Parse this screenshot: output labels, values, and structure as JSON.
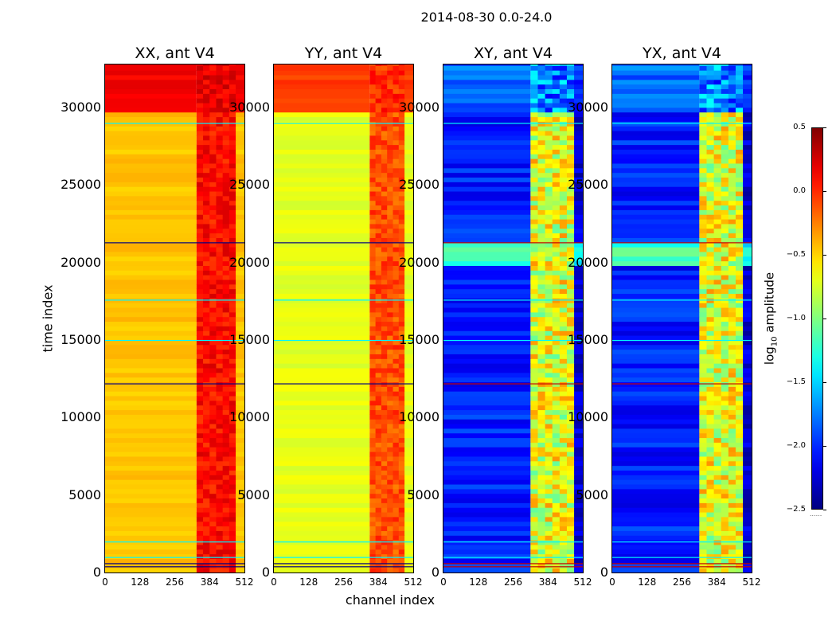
{
  "chart_data": {
    "type": "heatmap",
    "title": "2014-08-30 0.0-24.0",
    "xlabel": "channel index",
    "ylabel": "time index",
    "xlim": [
      0,
      512
    ],
    "ylim": [
      0,
      32768
    ],
    "x_ticks": [
      "0",
      "128",
      "256",
      "384",
      "512"
    ],
    "y_ticks": [
      "0",
      "5000",
      "10000",
      "15000",
      "20000",
      "25000",
      "30000"
    ],
    "y_tick_values": [
      0,
      5000,
      10000,
      15000,
      20000,
      25000,
      30000
    ],
    "colorbar": {
      "label": "log",
      "label_sub": "10",
      "label_rest": " amplitude",
      "ticks": [
        "0.5",
        "0.0",
        "−0.5",
        "−1.0",
        "−1.5",
        "−2.0",
        "−2.5"
      ],
      "tick_values": [
        0.5,
        0.0,
        -0.5,
        -1.0,
        -1.5,
        -2.0,
        -2.5
      ],
      "range": [
        -2.5,
        0.5
      ],
      "colormap": "jet"
    },
    "panels": [
      {
        "title": "XX, ant V4",
        "base_level": -0.45,
        "top_level": 0.15,
        "band_level": 0.1,
        "band_channels": [
          336,
          480
        ],
        "cross": false
      },
      {
        "title": "YY, ant V4",
        "base_level": -0.7,
        "top_level": -0.05,
        "band_level": -0.1,
        "band_channels": [
          352,
          480
        ],
        "cross": false
      },
      {
        "title": "XY, ant V4",
        "base_level": -2.05,
        "top_level": -1.8,
        "band_level": -0.7,
        "band_channels": [
          320,
          480
        ],
        "cross": true
      },
      {
        "title": "YX, ant V4",
        "base_level": -2.05,
        "top_level": -1.8,
        "band_level": -0.7,
        "band_channels": [
          320,
          480
        ],
        "cross": true
      }
    ],
    "features": {
      "top_block_start": 29700,
      "flag_times": [
        21300,
        12200,
        600,
        400
      ],
      "bright_times": [
        29000,
        17600,
        15000,
        2000,
        1000
      ],
      "cross_bright_block": [
        19700,
        21100
      ]
    }
  }
}
